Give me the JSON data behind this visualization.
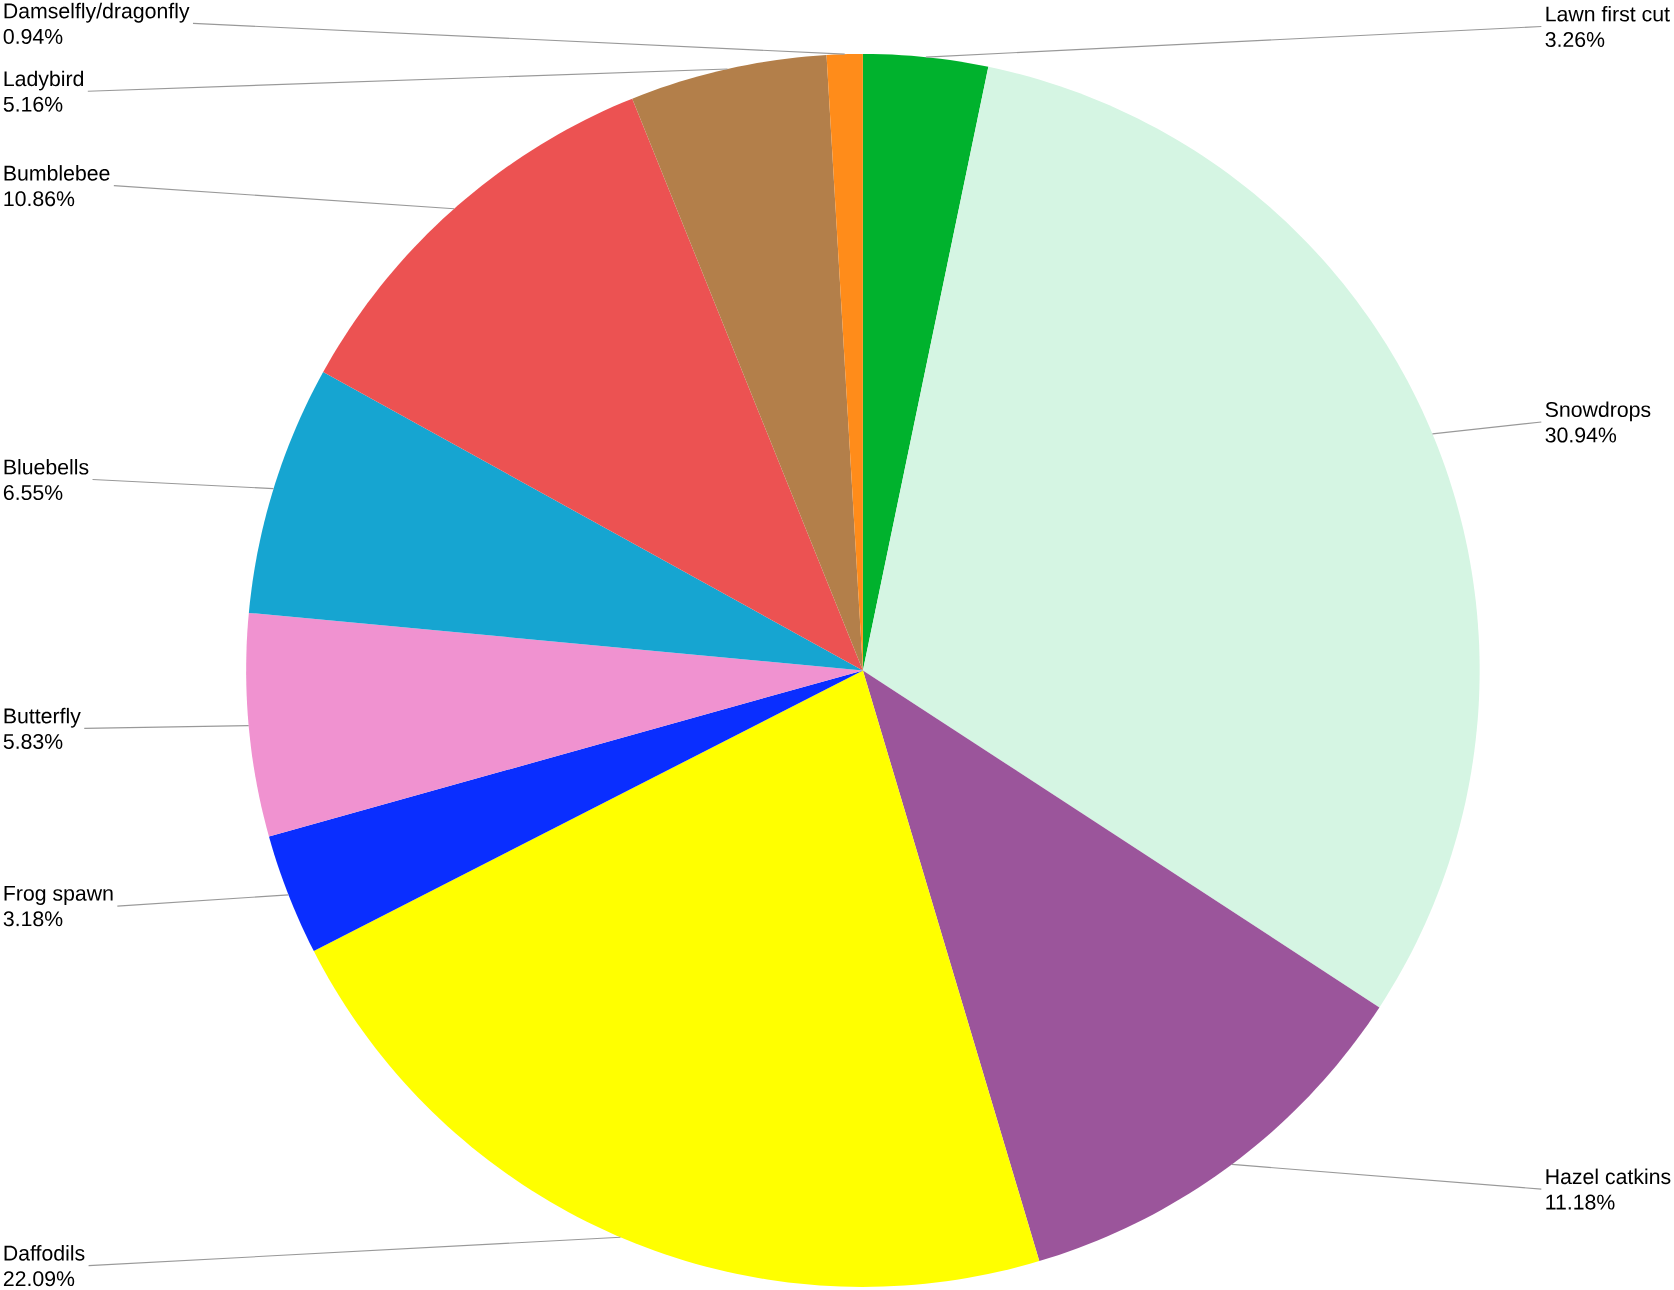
{
  "chart_data": {
    "type": "pie",
    "categories": [
      "Lawn first cut",
      "Snowdrops",
      "Hazel catkins",
      "Daffodils",
      "Frog spawn",
      "Butterfly",
      "Bluebells",
      "Bumblebee",
      "Ladybird",
      "Damselfly/dragonfly"
    ],
    "values": [
      3.26,
      30.94,
      11.18,
      22.09,
      3.18,
      5.83,
      6.55,
      10.86,
      5.16,
      0.94
    ],
    "colors": [
      "#00b22d",
      "#d5f5e3",
      "#9b559b",
      "#ffff00",
      "#0a2eff",
      "#f092d0",
      "#16a5d1",
      "#ec5252",
      "#b37f4a",
      "#ff8c1a"
    ],
    "value_labels": [
      "3.26%",
      "30.94%",
      "11.18%",
      "22.09%",
      "3.18%",
      "5.83%",
      "6.55%",
      "10.86%",
      "5.16%",
      "0.94%"
    ]
  }
}
